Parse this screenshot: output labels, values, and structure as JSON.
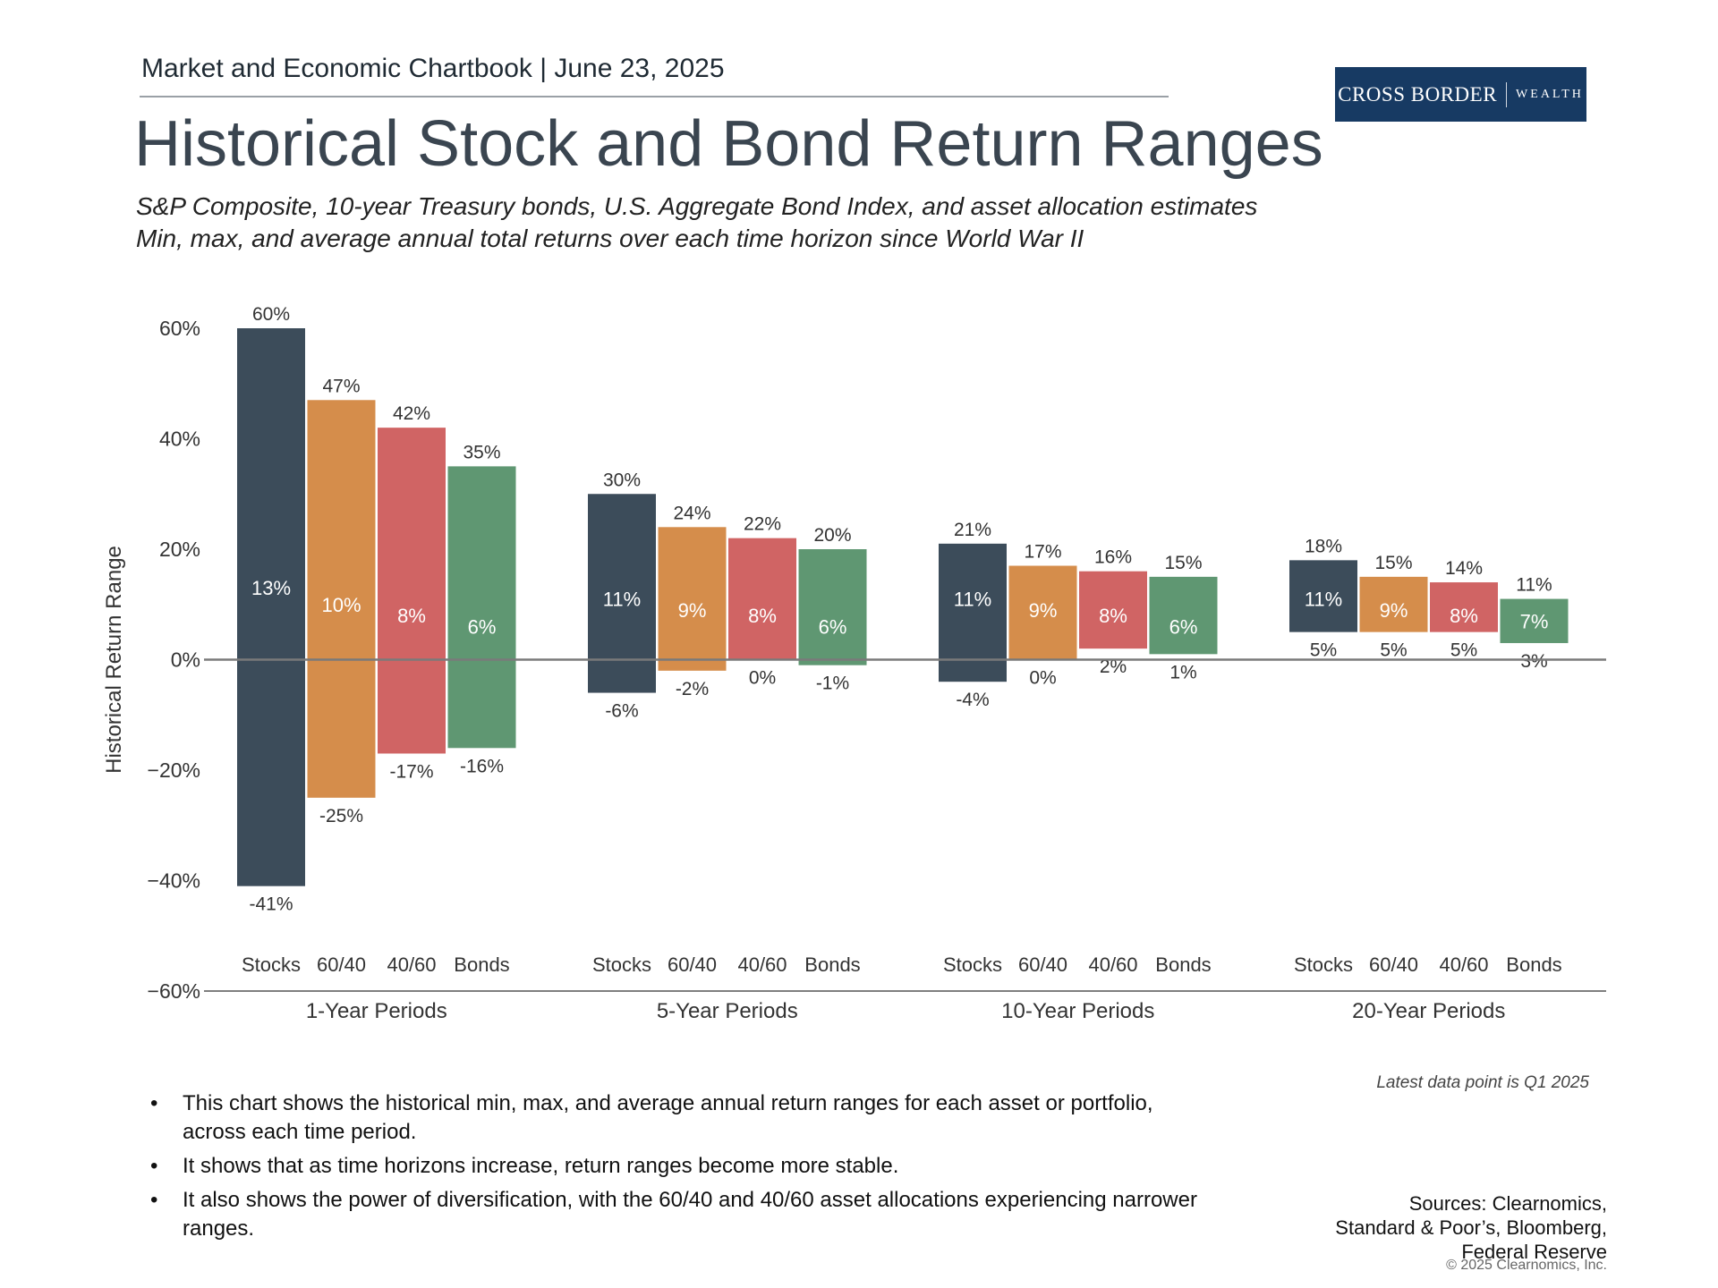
{
  "header": {
    "chartbook": "Market and Economic Chartbook | June 23, 2025"
  },
  "logo": {
    "main": "CROSS BORDER",
    "sub": "WEALTH"
  },
  "title": "Historical Stock and Bond Return Ranges",
  "subtitle": {
    "line1": "S&P Composite, 10-year Treasury bonds, U.S. Aggregate Bond Index, and asset allocation estimates",
    "line2": "Min, max, and average annual total returns over each time horizon since World War II"
  },
  "chart_data": {
    "type": "floating-bar",
    "ylabel": "Historical Return Range",
    "ylim": [
      -60,
      60
    ],
    "yticks": [
      60,
      40,
      20,
      0,
      -20,
      -40,
      -60
    ],
    "ytick_labels": [
      "60%",
      "40%",
      "20%",
      "0%",
      "−20%",
      "−40%",
      "−60%"
    ],
    "series_colors": {
      "Stocks": "#3c4c5a",
      "60/40": "#d58d4b",
      "40/60": "#d06464",
      "Bonds": "#5f9772"
    },
    "groups": [
      {
        "label": "1-Year Periods",
        "bars": [
          {
            "name": "Stocks",
            "max": 60,
            "min": -41,
            "avg": 13,
            "max_label": "60%",
            "min_label": "-41%",
            "avg_label": "13%"
          },
          {
            "name": "60/40",
            "max": 47,
            "min": -25,
            "avg": 10,
            "max_label": "47%",
            "min_label": "-25%",
            "avg_label": "10%"
          },
          {
            "name": "40/60",
            "max": 42,
            "min": -17,
            "avg": 8,
            "max_label": "42%",
            "min_label": "-17%",
            "avg_label": "8%"
          },
          {
            "name": "Bonds",
            "max": 35,
            "min": -16,
            "avg": 6,
            "max_label": "35%",
            "min_label": "-16%",
            "avg_label": "6%"
          }
        ]
      },
      {
        "label": "5-Year Periods",
        "bars": [
          {
            "name": "Stocks",
            "max": 30,
            "min": -6,
            "avg": 11,
            "max_label": "30%",
            "min_label": "-6%",
            "avg_label": "11%"
          },
          {
            "name": "60/40",
            "max": 24,
            "min": -2,
            "avg": 9,
            "max_label": "24%",
            "min_label": "-2%",
            "avg_label": "9%"
          },
          {
            "name": "40/60",
            "max": 22,
            "min": 0,
            "avg": 8,
            "max_label": "22%",
            "min_label": "0%",
            "avg_label": "8%"
          },
          {
            "name": "Bonds",
            "max": 20,
            "min": -1,
            "avg": 6,
            "max_label": "20%",
            "min_label": "-1%",
            "avg_label": "6%"
          }
        ]
      },
      {
        "label": "10-Year Periods",
        "bars": [
          {
            "name": "Stocks",
            "max": 21,
            "min": -4,
            "avg": 11,
            "max_label": "21%",
            "min_label": "-4%",
            "avg_label": "11%"
          },
          {
            "name": "60/40",
            "max": 17,
            "min": 0,
            "avg": 9,
            "max_label": "17%",
            "min_label": "0%",
            "avg_label": "9%"
          },
          {
            "name": "40/60",
            "max": 16,
            "min": 2,
            "avg": 8,
            "max_label": "16%",
            "min_label": "2%",
            "avg_label": "8%"
          },
          {
            "name": "Bonds",
            "max": 15,
            "min": 1,
            "avg": 6,
            "max_label": "15%",
            "min_label": "1%",
            "avg_label": "6%"
          }
        ]
      },
      {
        "label": "20-Year Periods",
        "bars": [
          {
            "name": "Stocks",
            "max": 18,
            "min": 5,
            "avg": 11,
            "max_label": "18%",
            "min_label": "5%",
            "avg_label": "11%"
          },
          {
            "name": "60/40",
            "max": 15,
            "min": 5,
            "avg": 9,
            "max_label": "15%",
            "min_label": "5%",
            "avg_label": "9%"
          },
          {
            "name": "40/60",
            "max": 14,
            "min": 5,
            "avg": 8,
            "max_label": "14%",
            "min_label": "5%",
            "avg_label": "8%"
          },
          {
            "name": "Bonds",
            "max": 11,
            "min": 3,
            "avg": 7,
            "max_label": "11%",
            "min_label": "3%",
            "avg_label": "7%"
          }
        ]
      }
    ]
  },
  "latest_note": "Latest data point is Q1 2025",
  "bullets": [
    "This chart shows the historical min, max, and average annual return ranges for each asset or portfolio, across each time period.",
    "It shows that as time horizons increase, return ranges become more stable.",
    "It also shows the power of diversification, with the 60/40 and 40/60 asset allocations experiencing narrower ranges."
  ],
  "sources": {
    "line1": "Sources: Clearnomics,",
    "line2": "Standard & Poor’s, Bloomberg,",
    "line3": "Federal Reserve"
  },
  "copyright": "© 2025 Clearnomics, Inc."
}
